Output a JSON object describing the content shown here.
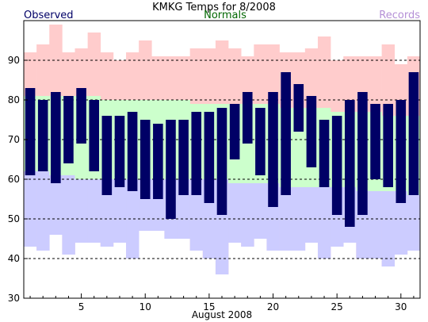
{
  "chart_data": {
    "type": "bar",
    "title": "KMKG Temps for 8/2008",
    "xlabel": "August 2008",
    "ylabel": "",
    "ylim": [
      30,
      100
    ],
    "grid": true,
    "legend": [
      {
        "name": "Observed",
        "color": "#000066"
      },
      {
        "name": "Normals",
        "color": "#006600"
      },
      {
        "name": "Records",
        "color": "#b48fd6"
      }
    ],
    "x_ticks": [
      5,
      10,
      15,
      20,
      25,
      30
    ],
    "y_ticks": [
      30,
      40,
      50,
      60,
      70,
      80,
      90
    ],
    "days": [
      1,
      2,
      3,
      4,
      5,
      6,
      7,
      8,
      9,
      10,
      11,
      12,
      13,
      14,
      15,
      16,
      17,
      18,
      19,
      20,
      21,
      22,
      23,
      24,
      25,
      26,
      27,
      28,
      29,
      30,
      31
    ],
    "series": [
      {
        "name": "Observed",
        "color": "#000066",
        "high": [
          83,
          80,
          82,
          81,
          83,
          80,
          76,
          76,
          77,
          75,
          74,
          75,
          75,
          77,
          77,
          78,
          79,
          82,
          78,
          82,
          87,
          84,
          81,
          75,
          76,
          80,
          82,
          79,
          79,
          80,
          87
        ],
        "low": [
          61,
          62,
          59,
          64,
          69,
          62,
          56,
          58,
          57,
          55,
          55,
          50,
          56,
          56,
          54,
          51,
          65,
          69,
          61,
          53,
          56,
          72,
          63,
          58,
          51,
          48,
          51,
          60,
          58,
          54,
          56
        ]
      },
      {
        "name": "Normals",
        "color": "#ccffcc",
        "high": [
          81,
          81,
          81,
          81,
          81,
          81,
          80,
          80,
          80,
          80,
          80,
          80,
          80,
          79,
          79,
          79,
          79,
          79,
          79,
          79,
          78,
          78,
          78,
          78,
          77,
          77,
          77,
          77,
          76,
          76,
          76
        ],
        "low": [
          62,
          62,
          61,
          61,
          60,
          60,
          60,
          60,
          60,
          60,
          60,
          60,
          60,
          60,
          60,
          60,
          59,
          59,
          59,
          59,
          58,
          58,
          58,
          58,
          58,
          58,
          57,
          57,
          57,
          57,
          56
        ]
      },
      {
        "name": "Records",
        "color": "#ffcccc",
        "high": [
          92,
          94,
          99,
          92,
          93,
          97,
          92,
          90,
          92,
          95,
          91,
          91,
          91,
          93,
          93,
          95,
          93,
          91,
          94,
          94,
          92,
          92,
          93,
          96,
          90,
          91,
          91,
          91,
          94,
          89,
          91
        ],
        "low": [
          43,
          42,
          46,
          41,
          44,
          44,
          43,
          44,
          40,
          47,
          47,
          45,
          45,
          42,
          40,
          36,
          44,
          43,
          45,
          42,
          42,
          42,
          44,
          40,
          43,
          44,
          40,
          40,
          38,
          41,
          42
        ]
      }
    ]
  }
}
